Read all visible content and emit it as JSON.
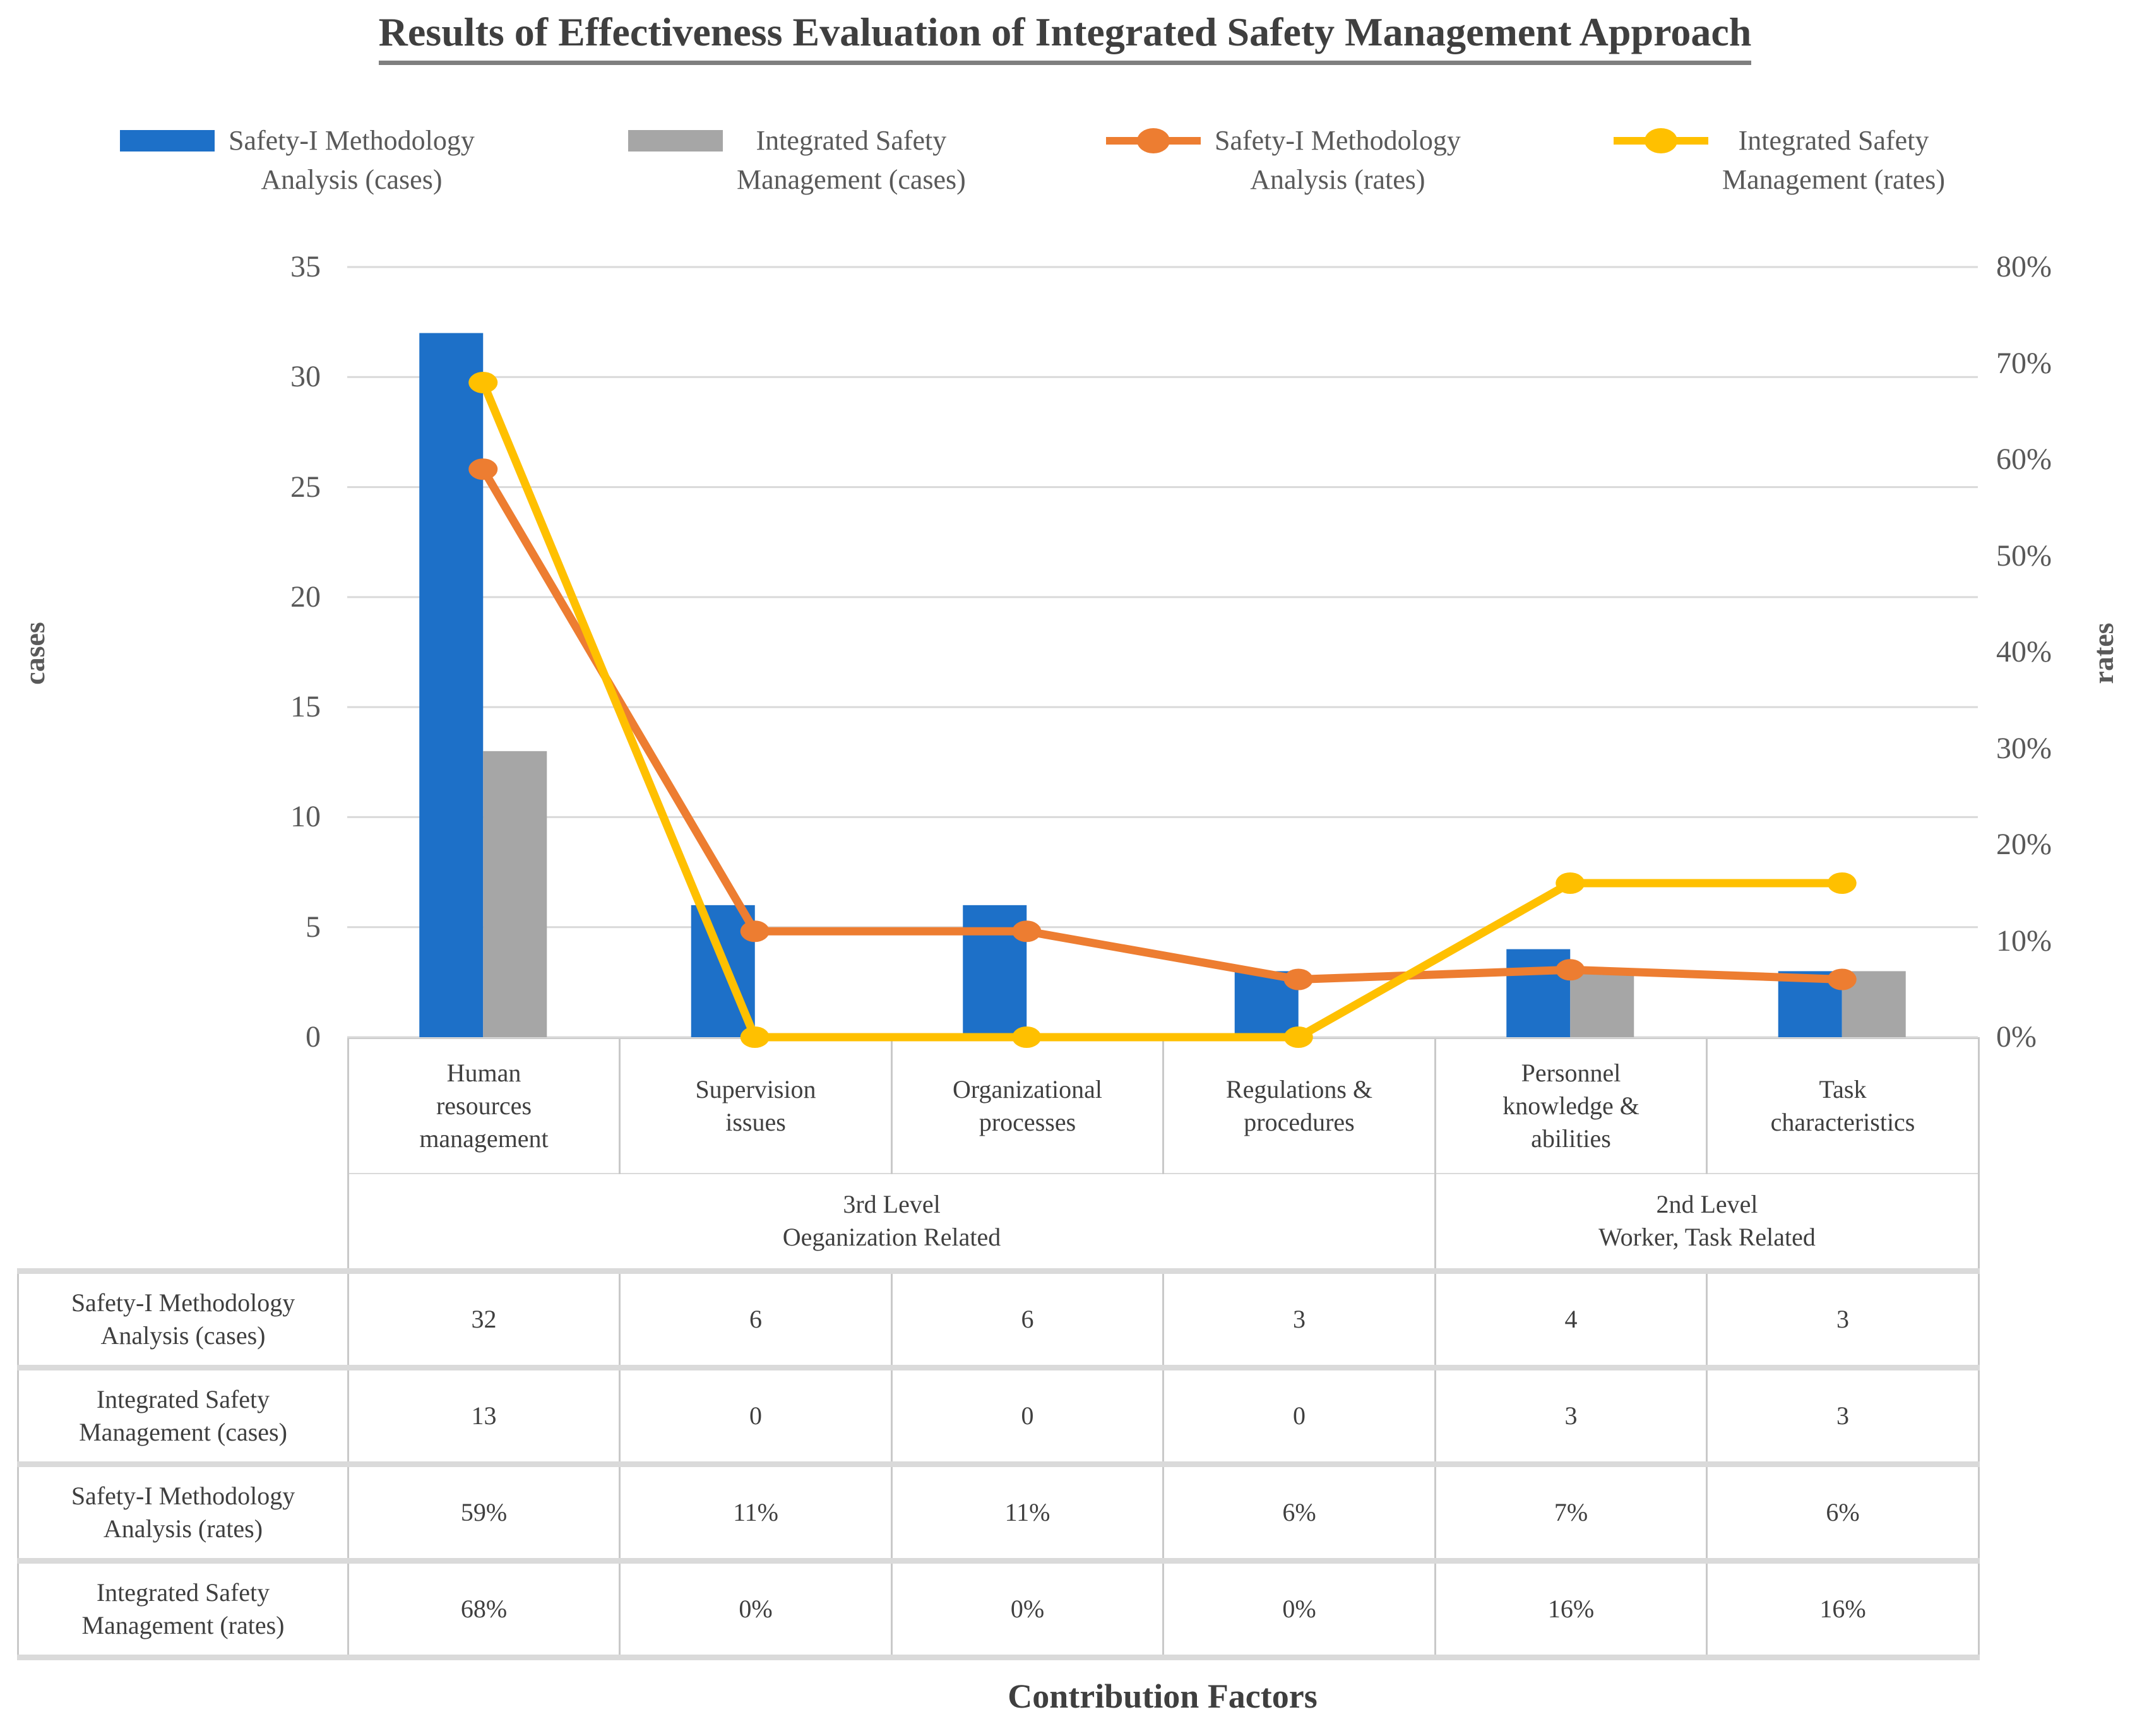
{
  "title": "Results of Effectiveness Evaluation of Integrated Safety Management Approach",
  "caption": "Contribution Factors",
  "colors": {
    "bar_blue": "#1D70C8",
    "bar_gray": "#A6A6A6",
    "line_orange": "#ED7D31",
    "line_yellow": "#FFC000",
    "grid": "#D9D9D9",
    "cell_border": "#C9C9C9",
    "row_separator": "#DADADA",
    "text": "#3F3F3F",
    "tick_text": "#595959",
    "title_underline": "#7F7F7F"
  },
  "legend": [
    {
      "label": "Safety-I Methodology\nAnalysis (cases)",
      "type": "bar",
      "color": "#1D70C8",
      "icon": "blue-bar-swatch-icon"
    },
    {
      "label": "Integrated Safety\nManagement (cases)",
      "type": "bar",
      "color": "#A6A6A6",
      "icon": "gray-bar-swatch-icon"
    },
    {
      "label": "Safety-I Methodology\nAnalysis (rates)",
      "type": "line",
      "color": "#ED7D31",
      "icon": "orange-line-marker-icon"
    },
    {
      "label": "Integrated Safety\nManagement (rates)",
      "type": "line",
      "color": "#FFC000",
      "icon": "yellow-line-marker-icon"
    }
  ],
  "axes": {
    "left": {
      "title": "cases",
      "ticks": [
        {
          "label": "35",
          "value": 35
        },
        {
          "label": "30",
          "value": 30
        },
        {
          "label": "25",
          "value": 25
        },
        {
          "label": "20",
          "value": 20
        },
        {
          "label": "15",
          "value": 15
        },
        {
          "label": "10",
          "value": 10
        },
        {
          "label": "5",
          "value": 5
        },
        {
          "label": "0",
          "value": 0
        }
      ]
    },
    "right": {
      "title": "rates",
      "ticks": [
        {
          "label": "80%",
          "value": 80
        },
        {
          "label": "70%",
          "value": 70
        },
        {
          "label": "60%",
          "value": 60
        },
        {
          "label": "50%",
          "value": 50
        },
        {
          "label": "40%",
          "value": 40
        },
        {
          "label": "30%",
          "value": 30
        },
        {
          "label": "20%",
          "value": 20
        },
        {
          "label": "10%",
          "value": 10
        },
        {
          "label": "0%",
          "value": 0
        }
      ]
    }
  },
  "chart_data": {
    "type": "combo bar+line",
    "title": "Results of Effectiveness Evaluation of Integrated Safety Management Approach",
    "categories": [
      "Human\nresources\nmanagement",
      "Supervision\nissues",
      "Organizational\nprocesses",
      "Regulations &\nprocedures",
      "Personnel\nknowledge &\nabilities",
      "Task\ncharacteristics"
    ],
    "series": [
      {
        "name": "Safety-I Methodology Analysis (cases)",
        "type": "bar",
        "axis": "left",
        "color": "#1D70C8",
        "values": [
          32,
          6,
          6,
          3,
          4,
          3
        ]
      },
      {
        "name": "Integrated Safety Management (cases)",
        "type": "bar",
        "axis": "left",
        "color": "#A6A6A6",
        "values": [
          13,
          0,
          0,
          0,
          3,
          3
        ]
      },
      {
        "name": "Safety-I Methodology Analysis (rates)",
        "type": "line",
        "axis": "right",
        "color": "#ED7D31",
        "unit": "%",
        "values": [
          59,
          11,
          11,
          6,
          7,
          6
        ]
      },
      {
        "name": "Integrated Safety Management (rates)",
        "type": "line",
        "axis": "right",
        "color": "#FFC000",
        "unit": "%",
        "values": [
          68,
          0,
          0,
          0,
          16,
          16
        ]
      }
    ],
    "xlabel": "Contribution Factors",
    "ylabel_left": "cases",
    "ylabel_right": "rates",
    "ylim_left": [
      0,
      35
    ],
    "ylim_right": [
      0,
      80
    ],
    "grid": "horizontal",
    "legend_position": "top"
  },
  "groups": [
    {
      "label": "3rd Level\nOeganization Related",
      "span": 4
    },
    {
      "label": "2nd Level\nWorker, Task Related",
      "span": 2
    }
  ],
  "table": {
    "row_headers": [
      "Safety-I Methodology\nAnalysis (cases)",
      "Integrated Safety\nManagement (cases)",
      "Safety-I Methodology\nAnalysis (rates)",
      "Integrated Safety\nManagement (rates)"
    ],
    "rows": [
      [
        "32",
        "6",
        "6",
        "3",
        "4",
        "3"
      ],
      [
        "13",
        "0",
        "0",
        "0",
        "3",
        "3"
      ],
      [
        "59%",
        "11%",
        "11%",
        "6%",
        "7%",
        "6%"
      ],
      [
        "68%",
        "0%",
        "0%",
        "0%",
        "16%",
        "16%"
      ]
    ]
  }
}
